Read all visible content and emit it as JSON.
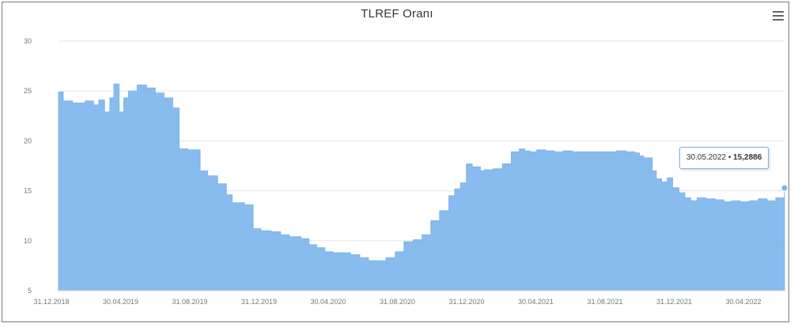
{
  "chart_data": {
    "type": "area",
    "title": "TLREF Oranı",
    "xlabel": "",
    "ylabel": "",
    "ylim": [
      5,
      30
    ],
    "y_ticks": [
      "5",
      "10",
      "15",
      "20",
      "25",
      "30"
    ],
    "x_ticks": [
      "31.12.2018",
      "30.04.2019",
      "31.08.2019",
      "31.12.2019",
      "30.04.2020",
      "31.08.2020",
      "31.12.2020",
      "30.04.2021",
      "31.08.2021",
      "31.12.2021",
      "30.04.2022"
    ],
    "color": "#7cb5ec",
    "grid": true,
    "x": [
      "2018-12-31",
      "2019-01-08",
      "2019-01-24",
      "2019-02-15",
      "2019-03-01",
      "2019-03-10",
      "2019-03-20",
      "2019-03-29",
      "2019-04-05",
      "2019-04-14",
      "2019-04-22",
      "2019-04-30",
      "2019-05-15",
      "2019-05-31",
      "2019-06-15",
      "2019-06-30",
      "2019-07-15",
      "2019-07-26",
      "2019-08-10",
      "2019-08-31",
      "2019-09-13",
      "2019-09-30",
      "2019-10-15",
      "2019-10-25",
      "2019-11-15",
      "2019-11-30",
      "2019-12-13",
      "2019-12-31",
      "2020-01-16",
      "2020-01-31",
      "2020-02-20",
      "2020-03-05",
      "2020-03-18",
      "2020-04-01",
      "2020-04-15",
      "2020-04-30",
      "2020-05-15",
      "2020-05-31",
      "2020-06-15",
      "2020-06-30",
      "2020-07-15",
      "2020-07-31",
      "2020-08-15",
      "2020-08-31",
      "2020-09-15",
      "2020-09-30",
      "2020-10-15",
      "2020-10-31",
      "2020-11-10",
      "2020-11-20",
      "2020-11-30",
      "2020-12-10",
      "2020-12-24",
      "2020-12-31",
      "2021-01-15",
      "2021-01-31",
      "2021-02-15",
      "2021-03-01",
      "2021-03-10",
      "2021-03-19",
      "2021-03-31",
      "2021-04-15",
      "2021-04-30",
      "2021-05-15",
      "2021-05-31",
      "2021-06-15",
      "2021-06-30",
      "2021-07-15",
      "2021-07-31",
      "2021-08-15",
      "2021-08-31",
      "2021-09-15",
      "2021-09-23",
      "2021-09-30",
      "2021-10-15",
      "2021-10-22",
      "2021-10-31",
      "2021-11-10",
      "2021-11-19",
      "2021-11-30",
      "2021-12-10",
      "2021-12-20",
      "2021-12-31",
      "2022-01-15",
      "2022-01-31",
      "2022-02-15",
      "2022-02-28",
      "2022-03-15",
      "2022-03-31",
      "2022-04-15",
      "2022-04-30",
      "2022-05-15",
      "2022-05-30"
    ],
    "y": [
      24.9,
      24.0,
      23.8,
      24.0,
      23.6,
      24.1,
      22.9,
      24.3,
      25.7,
      22.9,
      24.3,
      25.0,
      25.6,
      25.3,
      24.8,
      24.3,
      23.3,
      19.2,
      19.1,
      17.0,
      16.5,
      15.7,
      14.6,
      13.8,
      13.6,
      11.2,
      11.0,
      10.9,
      10.6,
      10.4,
      10.2,
      9.6,
      9.3,
      8.9,
      8.8,
      8.8,
      8.6,
      8.3,
      8.0,
      8.0,
      8.3,
      8.9,
      9.9,
      10.1,
      10.6,
      12.0,
      13.0,
      14.5,
      15.2,
      15.8,
      17.7,
      17.4,
      17.0,
      17.1,
      17.2,
      17.7,
      18.9,
      19.2,
      19.0,
      18.9,
      19.1,
      19.0,
      18.9,
      19.0,
      18.9,
      18.9,
      18.9,
      18.9,
      18.9,
      19.0,
      18.9,
      18.8,
      18.5,
      18.3,
      17.0,
      16.2,
      15.9,
      16.3,
      15.3,
      14.8,
      14.3,
      14.0,
      14.3,
      14.2,
      14.1,
      13.9,
      14.0,
      13.9,
      14.0,
      14.2,
      14.0,
      14.3,
      15.2886
    ],
    "tooltip": {
      "date": "30.05.2022",
      "separator": " • ",
      "value": "15,2886"
    }
  }
}
